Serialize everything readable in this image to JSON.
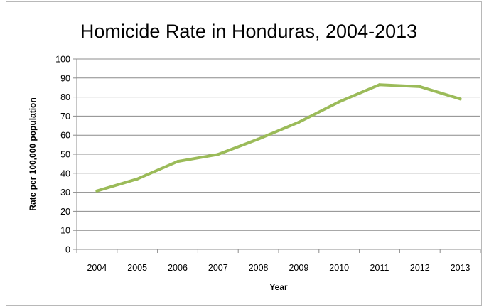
{
  "chart_data": {
    "type": "line",
    "title": "Homicide Rate in Honduras, 2004-2013",
    "xlabel": "Year",
    "ylabel": "Rate per 100,000 population",
    "categories": [
      "2004",
      "2005",
      "2006",
      "2007",
      "2008",
      "2009",
      "2010",
      "2011",
      "2012",
      "2013"
    ],
    "series": [
      {
        "values": [
          30.7,
          37.0,
          46.2,
          49.9,
          58.0,
          66.8,
          77.5,
          86.5,
          85.5,
          79.0
        ]
      }
    ],
    "ylim": [
      0,
      100
    ],
    "yticks": [
      "0",
      "10",
      "20",
      "30",
      "40",
      "50",
      "60",
      "70",
      "80",
      "90",
      "100"
    ],
    "grid": true,
    "legend": "none",
    "line_color": "#9bbb59",
    "grid_color": "#8c8c8c"
  }
}
